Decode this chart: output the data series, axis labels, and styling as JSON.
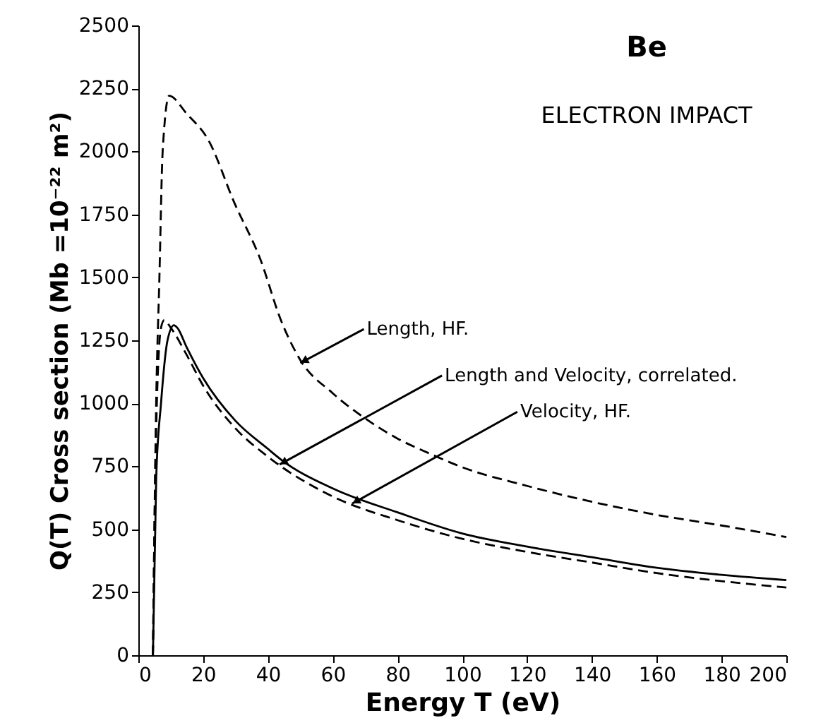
{
  "chart_data": {
    "type": "line",
    "title": "Be",
    "subtitle": "ELECTRON IMPACT",
    "xlabel": "Energy T (eV)",
    "ylabel": "Q(T)  Cross section  (Mb =10⁻²² m²)",
    "xlim": [
      0,
      200
    ],
    "ylim": [
      0,
      2500
    ],
    "xticks": [
      0,
      20,
      40,
      60,
      80,
      100,
      120,
      140,
      160,
      180,
      200
    ],
    "yticks": [
      0,
      250,
      500,
      750,
      1000,
      1250,
      1500,
      1750,
      2000,
      2250,
      2500
    ],
    "grid": false,
    "marker": "none",
    "series": [
      {
        "color": "#000000",
        "line_style": "dashed",
        "x": [
          4.5,
          5.5,
          6.5,
          7.5,
          9.5,
          14.9,
          21.6,
          29.6,
          37.7,
          44,
          49.7,
          60,
          70,
          80,
          90,
          100,
          120,
          140,
          160,
          180,
          200
        ],
        "values": [
          0,
          1000,
          1500,
          2000,
          2221,
          2150,
          2045,
          1797,
          1570,
          1330,
          1178,
          1040,
          940,
          860,
          800,
          746,
          672,
          609,
          557,
          515,
          469
        ]
      },
      {
        "color": "#000000",
        "line_style": "solid",
        "x": [
          4.5,
          5.5,
          7,
          9,
          11,
          12,
          15,
          20,
          30,
          40,
          44,
          60,
          80,
          100,
          120,
          140,
          160,
          180,
          200
        ],
        "values": [
          0,
          700,
          1000,
          1250,
          1310,
          1300,
          1220,
          1100,
          930,
          819,
          777,
          662,
          567,
          483,
          431,
          389,
          347,
          319,
          298
        ]
      },
      {
        "color": "#000000",
        "line_style": "dashed",
        "x": [
          4.5,
          5.5,
          7,
          8,
          10,
          15,
          20,
          30,
          40,
          60,
          80,
          100,
          120,
          140,
          160,
          180,
          200
        ],
        "values": [
          0,
          900,
          1300,
          1330,
          1300,
          1190,
          1070,
          900,
          788,
          630,
          536,
          462,
          410,
          368,
          326,
          294,
          269
        ]
      }
    ],
    "annotations": [
      {
        "text": "Length, HF.",
        "x": 50,
        "y": 1160
      },
      {
        "text": "Length and Velocity, correlated.",
        "x": 43.6,
        "y": 757
      },
      {
        "text": "Velocity, HF.",
        "x": 66,
        "y": 602
      }
    ]
  }
}
